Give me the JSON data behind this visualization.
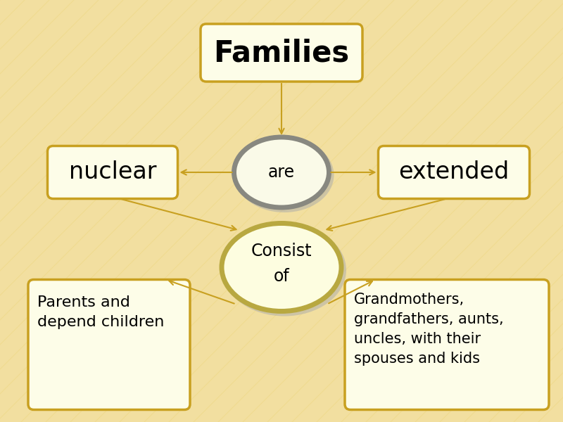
{
  "bg_color": "#F2DFA0",
  "stripe_color": "#EDD880",
  "stripe_alpha": 0.45,
  "box_fill": "#FDFDE8",
  "box_edge_color": "#C8A020",
  "box_edge_width": 2.5,
  "ellipse_are_fill": "#FAFAE8",
  "ellipse_are_edge": "#888880",
  "ellipse_are_edge_width": 5,
  "ellipse_consist_fill": "#FDFDE0",
  "ellipse_consist_edge": "#B8A840",
  "ellipse_consist_edge_width": 5,
  "arrow_color": "#C8A020",
  "arrow_lw": 1.5,
  "text_color": "#000000",
  "title_text": "Families",
  "title_fontsize": 30,
  "are_text": "are",
  "are_fontsize": 17,
  "consist_text": "Consist\nof",
  "consist_fontsize": 17,
  "nuclear_text": "nuclear",
  "nuclear_fontsize": 24,
  "extended_text": "extended",
  "extended_fontsize": 24,
  "parents_text": "Parents and\ndepend children",
  "parents_fontsize": 16,
  "grandmothers_text": "Grandmothers,\ngrandfathers, aunts,\nuncles, with their\nspouses and kids",
  "grandmothers_fontsize": 15,
  "figw": 8.0,
  "figh": 6.0,
  "dpi": 100
}
